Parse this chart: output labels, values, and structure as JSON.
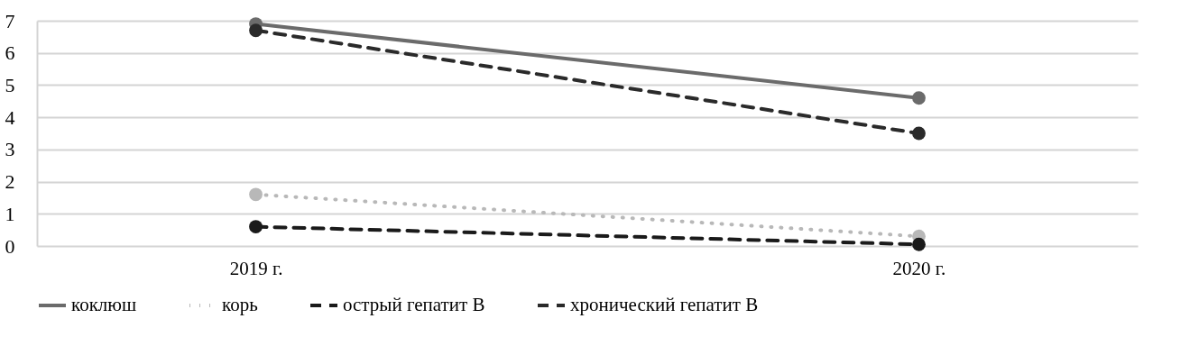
{
  "chart_data": {
    "type": "line",
    "categories": [
      "2019 г.",
      "2020 г."
    ],
    "series": [
      {
        "name": "коклюш",
        "color": "#6b6b6b",
        "values": [
          6.9,
          4.6
        ],
        "line_style": "solid"
      },
      {
        "name": "корь",
        "color": "#b8b8b8",
        "values": [
          1.6,
          0.3
        ],
        "line_style": "dotted"
      },
      {
        "name": "острый гепатит В",
        "color": "#1a1a1a",
        "values": [
          0.6,
          0.05
        ],
        "line_style": "dashed"
      },
      {
        "name": "хронический гепатит В",
        "color": "#2a2a2a",
        "values": [
          6.7,
          3.5
        ],
        "line_style": "dashed"
      }
    ],
    "ylim": [
      0,
      7
    ],
    "yticks": [
      0,
      1,
      2,
      3,
      4,
      5,
      6,
      7
    ],
    "grid": "y",
    "legend": "bottom",
    "marker": "circle"
  }
}
